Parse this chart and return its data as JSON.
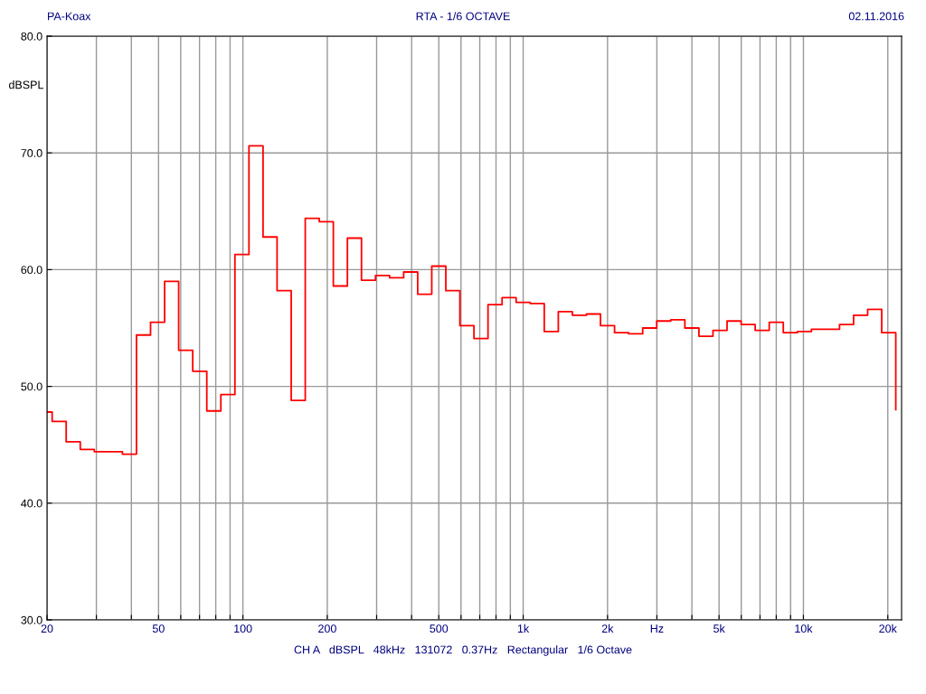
{
  "chart_data": {
    "type": "step",
    "title": "RTA - 1/6 OCTAVE",
    "ylabel": "dBSPL",
    "annotations": [
      "PA-Koax",
      "02.11.2016",
      "CH A   dBSPL   48kHz   131072   0.37Hz   Rectangular   1/6 Octave"
    ],
    "x": [
      20,
      20.86,
      23.41,
      26.28,
      29.5,
      33.11,
      37.16,
      41.71,
      46.82,
      52.56,
      58.99,
      66.22,
      74.33,
      83.43,
      93.64,
      105.1,
      117.98,
      132.4,
      148.7,
      166.9,
      187.3,
      210.2,
      235.97,
      264.9,
      297.3,
      333.7,
      374.6,
      420.4,
      471.9,
      529.7,
      594.6,
      667.4,
      749.1,
      840.9,
      943.9,
      1059.5,
      1189.2,
      1334.8,
      1498.3,
      1681.8,
      1887.7,
      2118.9,
      2378.4,
      2669.7,
      2996.6,
      3363.6,
      3775.5,
      4237.9,
      4756.8,
      5339.4,
      5993.3,
      6727.2,
      7551,
      8475.7,
      9513.7,
      10679,
      11987,
      13454,
      15102,
      16951,
      19027,
      21357
    ],
    "series": [
      {
        "color": "#ff0000",
        "values": [
          47.8,
          47.0,
          45.25,
          44.6,
          44.4,
          44.4,
          44.2,
          54.4,
          55.5,
          59.0,
          53.1,
          51.3,
          47.9,
          49.3,
          61.3,
          70.6,
          62.8,
          58.2,
          48.8,
          64.4,
          64.1,
          58.6,
          62.7,
          59.1,
          59.5,
          59.3,
          59.8,
          57.9,
          60.3,
          58.2,
          55.2,
          54.1,
          57.0,
          57.6,
          57.2,
          57.1,
          54.7,
          56.4,
          56.1,
          56.2,
          55.2,
          54.6,
          54.5,
          55.0,
          55.6,
          55.7,
          55.0,
          54.3,
          54.8,
          55.6,
          55.3,
          54.8,
          55.5,
          54.6,
          54.7,
          54.9,
          54.9,
          55.3,
          56.1,
          56.6,
          54.6,
          48.0
        ]
      }
    ],
    "log": "x",
    "xlim": [
      20,
      22400
    ],
    "ylim": [
      30,
      80
    ],
    "xticks": [
      20,
      {
        "value": 30,
        "label": null
      },
      {
        "value": 40,
        "label": null
      },
      50,
      {
        "value": 60,
        "label": null
      },
      {
        "value": 70,
        "label": null
      },
      {
        "value": 80,
        "label": null
      },
      {
        "value": 90,
        "label": null
      },
      100,
      200,
      {
        "value": 300,
        "label": null
      },
      {
        "value": 400,
        "label": null
      },
      500,
      {
        "value": 600,
        "label": null
      },
      {
        "value": 700,
        "label": null
      },
      {
        "value": 800,
        "label": null
      },
      {
        "value": 900,
        "label": null
      },
      {
        "value": 1000,
        "label": "1k"
      },
      {
        "value": 2000,
        "label": "2k"
      },
      {
        "value": 3000,
        "label": "Hz"
      },
      {
        "value": 4000,
        "label": null
      },
      {
        "value": 5000,
        "label": "5k"
      },
      {
        "value": 6000,
        "label": null
      },
      {
        "value": 7000,
        "label": null
      },
      {
        "value": 8000,
        "label": null
      },
      {
        "value": 9000,
        "label": null
      },
      {
        "value": 10000,
        "label": "10k"
      },
      {
        "value": 20000,
        "label": "20k"
      }
    ],
    "yticks": [
      {
        "value": 30,
        "label": "30.0"
      },
      {
        "value": 40,
        "label": "40.0"
      },
      {
        "value": 50,
        "label": "50.0"
      },
      {
        "value": 60,
        "label": "60.0"
      },
      {
        "value": 70,
        "label": "70.0"
      },
      {
        "value": 80,
        "label": "80.0"
      }
    ],
    "grid": true
  }
}
